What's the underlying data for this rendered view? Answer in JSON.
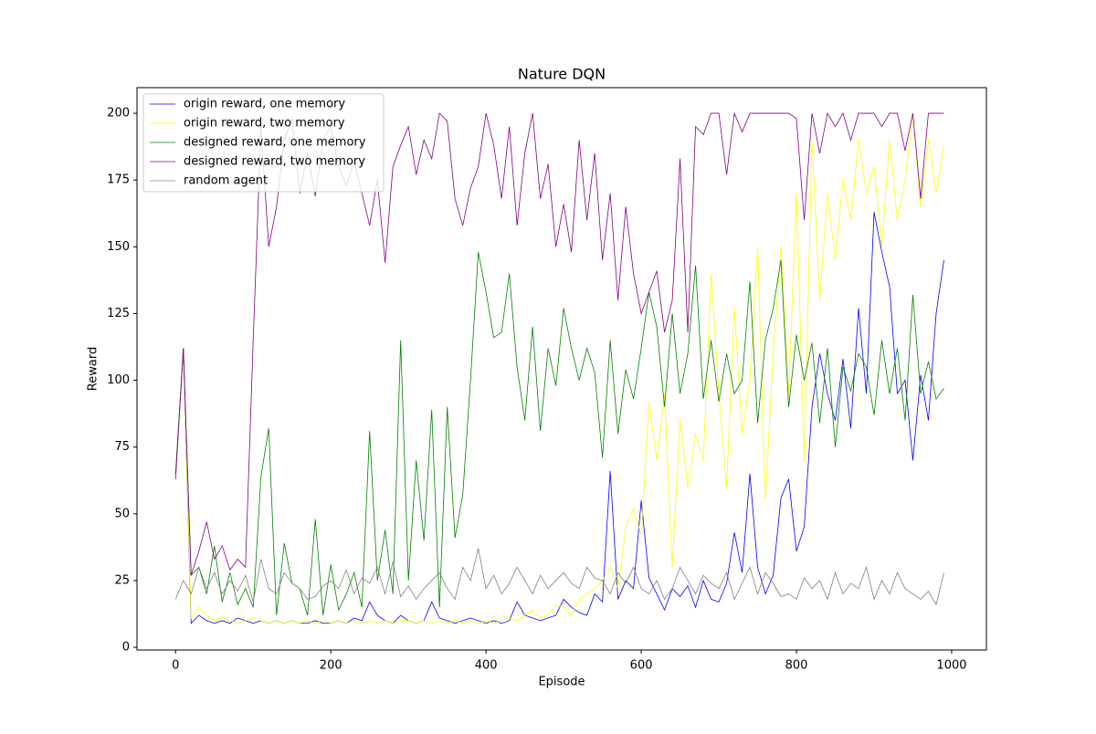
{
  "chart_data": {
    "type": "line",
    "title": "Nature DQN",
    "x_label": "Episode",
    "y_label": "Reward",
    "x": [
      0,
      10,
      20,
      30,
      40,
      50,
      60,
      70,
      80,
      90,
      100,
      110,
      120,
      130,
      140,
      150,
      160,
      170,
      180,
      190,
      200,
      210,
      220,
      230,
      240,
      250,
      260,
      270,
      280,
      290,
      300,
      310,
      320,
      330,
      340,
      350,
      360,
      370,
      380,
      390,
      400,
      410,
      420,
      430,
      440,
      450,
      460,
      470,
      480,
      490,
      500,
      510,
      520,
      530,
      540,
      550,
      560,
      570,
      580,
      590,
      600,
      610,
      620,
      630,
      640,
      650,
      660,
      670,
      680,
      690,
      700,
      710,
      720,
      730,
      740,
      750,
      760,
      770,
      780,
      790,
      800,
      810,
      820,
      830,
      840,
      850,
      860,
      870,
      880,
      890,
      900,
      910,
      920,
      930,
      940,
      950,
      960,
      970,
      980,
      990
    ],
    "series": [
      {
        "name": "origin reward, one memory",
        "color": "blue",
        "values": [
          65,
          112,
          9,
          12,
          10,
          9,
          10,
          9,
          11,
          10,
          9,
          10,
          9,
          10,
          9,
          10,
          9,
          9,
          10,
          9,
          9,
          10,
          9,
          11,
          10,
          17,
          12,
          10,
          9,
          12,
          10,
          9,
          10,
          17,
          11,
          10,
          9,
          10,
          11,
          10,
          9,
          10,
          9,
          10,
          17,
          12,
          11,
          10,
          11,
          12,
          18,
          15,
          13,
          12,
          20,
          17,
          66,
          18,
          25,
          22,
          55,
          26,
          20,
          14,
          22,
          19,
          23,
          15,
          25,
          18,
          17,
          24,
          43,
          28,
          65,
          30,
          20,
          27,
          56,
          63,
          36,
          45,
          90,
          110,
          95,
          85,
          108,
          82,
          127,
          95,
          163,
          148,
          135,
          95,
          100,
          70,
          102,
          85,
          125,
          145
        ]
      },
      {
        "name": "origin reward, two memory",
        "color": "yellow",
        "values": [
          65,
          112,
          11,
          15,
          12,
          10,
          11,
          10,
          9,
          10,
          11,
          10,
          9,
          10,
          9,
          10,
          9,
          10,
          9,
          10,
          9,
          10,
          9,
          10,
          9,
          10,
          9,
          10,
          9,
          10,
          10,
          9,
          10,
          9,
          10,
          9,
          10,
          9,
          10,
          9,
          10,
          9,
          10,
          11,
          10,
          12,
          14,
          11,
          12,
          16,
          15,
          12,
          18,
          20,
          22,
          25,
          30,
          22,
          45,
          52,
          42,
          92,
          70,
          95,
          30,
          85,
          60,
          80,
          70,
          140,
          95,
          60,
          127,
          80,
          100,
          150,
          55,
          110,
          150,
          95,
          170,
          70,
          190,
          130,
          170,
          145,
          175,
          160,
          190,
          170,
          180,
          150,
          190,
          160,
          175,
          200,
          165,
          190,
          170,
          188
        ]
      },
      {
        "name": "designed reward, one memory",
        "color": "green",
        "values": [
          65,
          112,
          27,
          30,
          20,
          38,
          17,
          28,
          16,
          22,
          15,
          64,
          82,
          12,
          39,
          24,
          22,
          12,
          48,
          12,
          31,
          14,
          20,
          28,
          15,
          81,
          25,
          44,
          20,
          115,
          25,
          70,
          40,
          89,
          15,
          90,
          41,
          57,
          100,
          148,
          133,
          116,
          118,
          140,
          105,
          85,
          120,
          81,
          112,
          98,
          127,
          112,
          100,
          112,
          103,
          71,
          115,
          80,
          104,
          93,
          112,
          133,
          120,
          90,
          125,
          95,
          110,
          143,
          93,
          115,
          92,
          110,
          95,
          100,
          137,
          84,
          115,
          127,
          145,
          90,
          117,
          100,
          114,
          84,
          112,
          75,
          105,
          96,
          110,
          105,
          87,
          115,
          95,
          112,
          85,
          132,
          95,
          107,
          93,
          97
        ]
      },
      {
        "name": "designed reward, two memory",
        "color": "purple",
        "values": [
          63,
          112,
          27,
          36,
          47,
          33,
          38,
          29,
          33,
          30,
          115,
          195,
          150,
          165,
          190,
          198,
          170,
          185,
          169,
          190,
          195,
          180,
          173,
          182,
          170,
          158,
          175,
          144,
          180,
          188,
          195,
          177,
          190,
          183,
          200,
          197,
          168,
          158,
          172,
          180,
          200,
          188,
          168,
          195,
          158,
          185,
          200,
          168,
          181,
          150,
          166,
          148,
          190,
          160,
          185,
          145,
          170,
          130,
          165,
          140,
          125,
          133,
          141,
          118,
          130,
          183,
          118,
          195,
          192,
          200,
          200,
          177,
          200,
          193,
          200,
          200,
          200,
          200,
          200,
          200,
          198,
          160,
          200,
          185,
          200,
          195,
          200,
          190,
          200,
          200,
          200,
          195,
          200,
          200,
          186,
          200,
          168,
          200,
          200,
          200
        ]
      },
      {
        "name": "random agent",
        "color": "gray",
        "values": [
          18,
          25,
          20,
          30,
          22,
          28,
          20,
          25,
          21,
          27,
          17,
          33,
          22,
          20,
          28,
          24,
          22,
          18,
          19,
          23,
          25,
          22,
          29,
          20,
          26,
          24,
          30,
          20,
          32,
          19,
          23,
          18,
          22,
          25,
          28,
          22,
          18,
          30,
          25,
          37,
          22,
          27,
          20,
          24,
          30,
          25,
          20,
          27,
          22,
          25,
          28,
          24,
          22,
          30,
          26,
          25,
          20,
          28,
          24,
          30,
          22,
          20,
          25,
          18,
          22,
          30,
          25,
          20,
          27,
          24,
          22,
          28,
          18,
          24,
          30,
          20,
          28,
          24,
          19,
          20,
          18,
          26,
          22,
          25,
          18,
          28,
          20,
          24,
          22,
          30,
          18,
          25,
          20,
          28,
          22,
          20,
          18,
          21,
          16,
          28
        ]
      }
    ],
    "xlim": [
      -49.75,
      1044.75
    ],
    "xticks": [
      0,
      200,
      400,
      600,
      800,
      1000
    ],
    "ylim": [
      -1,
      209.6
    ],
    "yticks": [
      0,
      25,
      50,
      75,
      100,
      125,
      150,
      175,
      200
    ],
    "legend": "upper left",
    "grid": false
  }
}
